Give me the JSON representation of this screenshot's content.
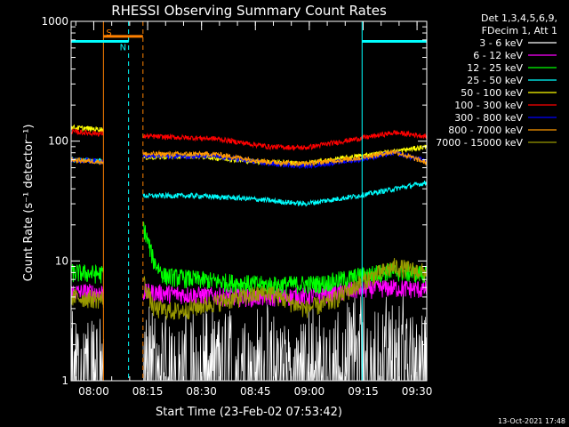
{
  "chart_data": {
    "type": "line",
    "title": "RHESSI Observing Summary Count Rates",
    "xlabel": "Start Time (23-Feb-02 07:53:42)",
    "ylabel": "Count Rate (s⁻¹ detector⁻¹)",
    "yscale": "log",
    "ylim": [
      1,
      1000
    ],
    "xlim_minutes_after_start": [
      0,
      99
    ],
    "x_start": "07:53:42",
    "xticks": [
      "08:00",
      "08:15",
      "08:30",
      "08:45",
      "09:00",
      "09:15",
      "09:30"
    ],
    "xtick_minutes": [
      6.3,
      21.3,
      36.3,
      51.3,
      66.3,
      81.3,
      96.3
    ],
    "yticks": [
      "1",
      "10",
      "100",
      "1000"
    ],
    "ytick_values": [
      1,
      10,
      100,
      1000
    ],
    "legend_header": [
      "Det 1,3,4,5,6,9,",
      "FDecim 1, Att 1"
    ],
    "legend_position": "top-right",
    "footer_date": "13-Oct-2021 17:48",
    "gaps_minutes": [
      [
        9,
        20
      ]
    ],
    "series": [
      {
        "name": "3 - 6 keV",
        "color": "#ffffff",
        "points": [
          [
            0,
            1.6
          ],
          [
            4,
            1.7
          ],
          [
            21,
            1.5
          ],
          [
            35,
            1.6
          ],
          [
            50,
            1.5
          ],
          [
            65,
            1.6
          ],
          [
            80,
            2.1
          ],
          [
            90,
            2.2
          ],
          [
            99,
            1.7
          ]
        ]
      },
      {
        "name": "6 - 12 keV",
        "color": "#ff00ff",
        "points": [
          [
            0,
            5.5
          ],
          [
            9,
            5.5
          ],
          [
            21,
            5.5
          ],
          [
            35,
            5.2
          ],
          [
            50,
            5.0
          ],
          [
            65,
            5.1
          ],
          [
            80,
            5.8
          ],
          [
            88,
            6.0
          ],
          [
            99,
            5.8
          ]
        ]
      },
      {
        "name": "12 - 25 keV",
        "color": "#00ff00",
        "points": [
          [
            0,
            8
          ],
          [
            9,
            7.8
          ],
          [
            20,
            20
          ],
          [
            23,
            10
          ],
          [
            26,
            7.5
          ],
          [
            40,
            6.8
          ],
          [
            55,
            6.3
          ],
          [
            70,
            6.5
          ],
          [
            80,
            7.5
          ],
          [
            88,
            8.2
          ],
          [
            99,
            7.8
          ]
        ]
      },
      {
        "name": "25 - 50 keV",
        "color": "#00ffff",
        "points": [
          [
            0,
            70
          ],
          [
            9,
            68
          ],
          [
            20,
            35
          ],
          [
            35,
            35
          ],
          [
            50,
            33
          ],
          [
            65,
            30
          ],
          [
            80,
            35
          ],
          [
            99,
            45
          ]
        ]
      },
      {
        "name": "50 - 100 keV",
        "color": "#ffff00",
        "points": [
          [
            0,
            130
          ],
          [
            9,
            125
          ],
          [
            20,
            73
          ],
          [
            35,
            75
          ],
          [
            50,
            68
          ],
          [
            65,
            65
          ],
          [
            80,
            75
          ],
          [
            90,
            82
          ],
          [
            99,
            90
          ]
        ]
      },
      {
        "name": "100 - 300 keV",
        "color": "#ff0000",
        "points": [
          [
            0,
            120
          ],
          [
            9,
            115
          ],
          [
            20,
            110
          ],
          [
            40,
            105
          ],
          [
            55,
            90
          ],
          [
            65,
            88
          ],
          [
            80,
            105
          ],
          [
            90,
            118
          ],
          [
            99,
            110
          ]
        ]
      },
      {
        "name": "300 - 800 keV",
        "color": "#0000ff",
        "points": [
          [
            0,
            70
          ],
          [
            9,
            68
          ],
          [
            20,
            75
          ],
          [
            40,
            75
          ],
          [
            55,
            65
          ],
          [
            65,
            62
          ],
          [
            80,
            70
          ],
          [
            90,
            80
          ],
          [
            99,
            68
          ]
        ]
      },
      {
        "name": "800 - 7000 keV",
        "color": "#ff9900",
        "points": [
          [
            0,
            70
          ],
          [
            9,
            67
          ],
          [
            20,
            78
          ],
          [
            40,
            78
          ],
          [
            55,
            67
          ],
          [
            65,
            65
          ],
          [
            80,
            72
          ],
          [
            90,
            82
          ],
          [
            99,
            66
          ]
        ]
      },
      {
        "name": "7000 - 15000 keV",
        "color": "#999900",
        "points": [
          [
            0,
            5
          ],
          [
            9,
            4.8
          ],
          [
            20,
            7
          ],
          [
            23,
            4
          ],
          [
            30,
            3.8
          ],
          [
            40,
            4.5
          ],
          [
            55,
            5.5
          ],
          [
            65,
            4.0
          ],
          [
            72,
            4.5
          ],
          [
            82,
            7.0
          ],
          [
            90,
            9.0
          ],
          [
            99,
            8.0
          ]
        ]
      }
    ],
    "flags": [
      {
        "label": "S",
        "color": "#ff8000",
        "x_range": [
          9,
          20
        ],
        "level": 750
      },
      {
        "label": "N",
        "color": "#00ffff",
        "x_range": [
          0,
          16
        ],
        "level": 680
      },
      {
        "label": "",
        "color": "#00ffff",
        "x_range": [
          81,
          99
        ],
        "level": 680
      }
    ],
    "vlines": [
      {
        "minute": 9,
        "color": "#ff8000",
        "style": "solid"
      },
      {
        "minute": 20,
        "color": "#ff8000",
        "style": "dash"
      },
      {
        "minute": 16,
        "color": "#00ffff",
        "style": "dash"
      },
      {
        "minute": 0,
        "color": "#00ffff",
        "style": "solid"
      },
      {
        "minute": 81,
        "color": "#00ffff",
        "style": "solid"
      },
      {
        "minute": 99,
        "color": "#00ffff",
        "style": "dash"
      }
    ]
  }
}
